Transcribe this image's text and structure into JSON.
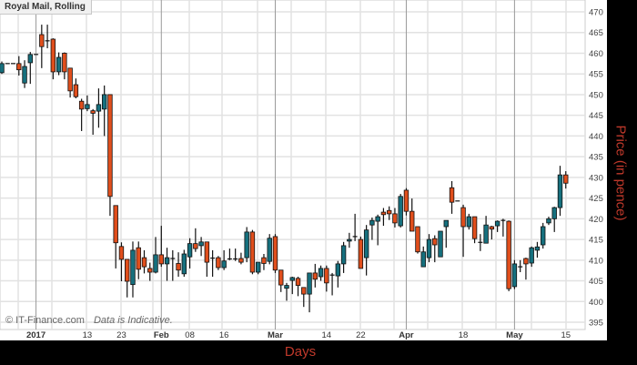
{
  "chart_data": {
    "type": "candlestick",
    "title": "Royal Mail, Rolling",
    "watermark": "© IT-Finance.com",
    "disclaimer": "Data is Indicative.",
    "xlabel": "Days",
    "ylabel": "Price (in pence)",
    "ylim": [
      393,
      472
    ],
    "y_ticks": [
      395,
      400,
      405,
      410,
      415,
      420,
      425,
      430,
      435,
      440,
      445,
      450,
      455,
      460,
      465,
      470
    ],
    "x_ticks": [
      {
        "label": "2017",
        "index": 6,
        "bold": true
      },
      {
        "label": "13",
        "index": 15
      },
      {
        "label": "23",
        "index": 21
      },
      {
        "label": "Feb",
        "index": 28,
        "bold": true
      },
      {
        "label": "08",
        "index": 33
      },
      {
        "label": "16",
        "index": 39
      },
      {
        "label": "Mar",
        "index": 48,
        "bold": true
      },
      {
        "label": "14",
        "index": 57
      },
      {
        "label": "22",
        "index": 63
      },
      {
        "label": "Apr",
        "index": 71,
        "bold": true
      },
      {
        "label": "18",
        "index": 81
      },
      {
        "label": "May",
        "index": 90,
        "bold": true
      },
      {
        "label": "15",
        "index": 99
      }
    ],
    "grid": true,
    "colors": {
      "up": "#16707e",
      "down": "#e04e1c",
      "wick": "#111111",
      "grid": "#e2e2e2",
      "month_line": "#9a9a9a"
    },
    "ohlc": [
      [
        455.3,
        458,
        455,
        457.5
      ],
      [
        457.5,
        457.5,
        457.5,
        457.5
      ],
      [
        457.5,
        457.5,
        457.5,
        457.5
      ],
      [
        457.5,
        459.3,
        454.6,
        456
      ],
      [
        452.8,
        458.3,
        451.6,
        456.8
      ],
      [
        457.7,
        460.3,
        452.6,
        459.7
      ],
      [
        459.7,
        459.7,
        459.7,
        459.7
      ],
      [
        464.5,
        466.9,
        456.4,
        461.6
      ],
      [
        463,
        466.9,
        461.2,
        463
      ],
      [
        463.4,
        463.6,
        453.7,
        455.5
      ],
      [
        455.5,
        460.2,
        454.7,
        459
      ],
      [
        460,
        460.2,
        453.7,
        455.5
      ],
      [
        456.4,
        456.4,
        449.3,
        450.9
      ],
      [
        452.4,
        453.9,
        449.1,
        449.5
      ],
      [
        448.4,
        449,
        441.2,
        446.5
      ],
      [
        446.6,
        449.8,
        446,
        447.6
      ],
      [
        446.1,
        446.5,
        440.3,
        445.5
      ],
      [
        446,
        451.5,
        442,
        447.6
      ],
      [
        446.5,
        452.2,
        440,
        450
      ],
      [
        450,
        450,
        420.7,
        425.4
      ],
      [
        423.2,
        423.2,
        408,
        414.2
      ],
      [
        413.3,
        414.3,
        404.9,
        410.2
      ],
      [
        410.2,
        410.2,
        401,
        404.9
      ],
      [
        404.1,
        414.5,
        401,
        412.4
      ],
      [
        413,
        414.5,
        405.4,
        407.8
      ],
      [
        410.6,
        412.4,
        406.8,
        408.4
      ],
      [
        408,
        409.4,
        405,
        407.1
      ],
      [
        407.1,
        415.6,
        406.8,
        411.3
      ],
      [
        411.3,
        418.3,
        408.4,
        409.1
      ],
      [
        409.1,
        413,
        405,
        410.6
      ],
      [
        410.4,
        412.4,
        405,
        410.4
      ],
      [
        409.2,
        411.9,
        406,
        407.6
      ],
      [
        406.7,
        412.5,
        406,
        411.5
      ],
      [
        410.8,
        415.3,
        408,
        414
      ],
      [
        414,
        417.7,
        412,
        412.8
      ],
      [
        413.5,
        415.6,
        411,
        414.4
      ],
      [
        414.4,
        414.4,
        406,
        409.5
      ],
      [
        410.5,
        412.4,
        406,
        410.5
      ],
      [
        410.6,
        411,
        407.6,
        408.2
      ],
      [
        408.2,
        412.4,
        407.6,
        409.8
      ],
      [
        410.3,
        412.8,
        410,
        410.3
      ],
      [
        410.3,
        412.8,
        409.8,
        410.3
      ],
      [
        410.4,
        411.8,
        409,
        409.5
      ],
      [
        410.6,
        418,
        409.5,
        416.8
      ],
      [
        416.8,
        417.3,
        406.6,
        407.1
      ],
      [
        407.1,
        409.5,
        406.6,
        409.5
      ],
      [
        410.6,
        411.5,
        407.6,
        409.2
      ],
      [
        409.7,
        416.3,
        409,
        415.3
      ],
      [
        415.7,
        416.3,
        406.9,
        407.6
      ],
      [
        407.6,
        407.6,
        402.3,
        404
      ],
      [
        403.2,
        404.5,
        400.2,
        403.9
      ],
      [
        405.1,
        406,
        401.8,
        405.8
      ],
      [
        405.6,
        406,
        401.3,
        403.9
      ],
      [
        403.4,
        403.4,
        398.7,
        401.8
      ],
      [
        401.8,
        406.9,
        397.4,
        406.9
      ],
      [
        406.9,
        409.1,
        403.4,
        405.4
      ],
      [
        406,
        408.7,
        405,
        408
      ],
      [
        408,
        408.7,
        402.4,
        404.5
      ],
      [
        406.4,
        406.9,
        401.5,
        406.4
      ],
      [
        406.2,
        409.8,
        403.4,
        409.1
      ],
      [
        409.1,
        414.4,
        406.9,
        413.5
      ],
      [
        414.6,
        416.6,
        413,
        415
      ],
      [
        415.7,
        421.2,
        414.6,
        415.7
      ],
      [
        415,
        415.7,
        408,
        408
      ],
      [
        410.6,
        418.5,
        406.3,
        417.3
      ],
      [
        418.5,
        420.3,
        414.9,
        419.6
      ],
      [
        419.4,
        421,
        413.6,
        420.5
      ],
      [
        421.6,
        422.6,
        418.3,
        421
      ],
      [
        422,
        423,
        419.7,
        421.2
      ],
      [
        421.2,
        422.6,
        417.9,
        419
      ],
      [
        418.3,
        426,
        417.9,
        425.4
      ],
      [
        426.9,
        427.4,
        420.8,
        421.8
      ],
      [
        421.8,
        424.9,
        417,
        417
      ],
      [
        418.1,
        418.1,
        411.6,
        412
      ],
      [
        408.4,
        413.3,
        408.4,
        412
      ],
      [
        410.6,
        416.3,
        409.5,
        415
      ],
      [
        415.2,
        416,
        409.5,
        413.7
      ],
      [
        410.8,
        417,
        410.8,
        417
      ],
      [
        418.1,
        419.6,
        413,
        419.6
      ],
      [
        427.5,
        429.1,
        421.2,
        424
      ],
      [
        424.3,
        424.3,
        424.3,
        424.3
      ],
      [
        422.7,
        423.4,
        410.8,
        418.1
      ],
      [
        418.1,
        421.2,
        417.4,
        420.5
      ],
      [
        420.5,
        420.5,
        414.1,
        415.2
      ],
      [
        414.3,
        416.3,
        412.2,
        414.3
      ],
      [
        414.1,
        420.7,
        414.1,
        418.5
      ],
      [
        418.1,
        418.3,
        415,
        417.5
      ],
      [
        418.3,
        419.6,
        416.8,
        419.4
      ],
      [
        419.6,
        420,
        415.7,
        419.6
      ],
      [
        419.4,
        419.6,
        402.5,
        403.1
      ],
      [
        403.6,
        410,
        403,
        409.1
      ],
      [
        408.4,
        410,
        407.1,
        408.4
      ],
      [
        410.4,
        410.6,
        405.3,
        409.1
      ],
      [
        409.3,
        413.3,
        408.4,
        413
      ],
      [
        412.4,
        414.4,
        410.6,
        413.2
      ],
      [
        413.7,
        419,
        412.8,
        418.1
      ],
      [
        419,
        420.5,
        418.5,
        420
      ],
      [
        420,
        422.9,
        416.8,
        422.7
      ],
      [
        422.7,
        432.8,
        420.7,
        430.6
      ],
      [
        430.6,
        431.5,
        427.3,
        428.6
      ]
    ]
  }
}
